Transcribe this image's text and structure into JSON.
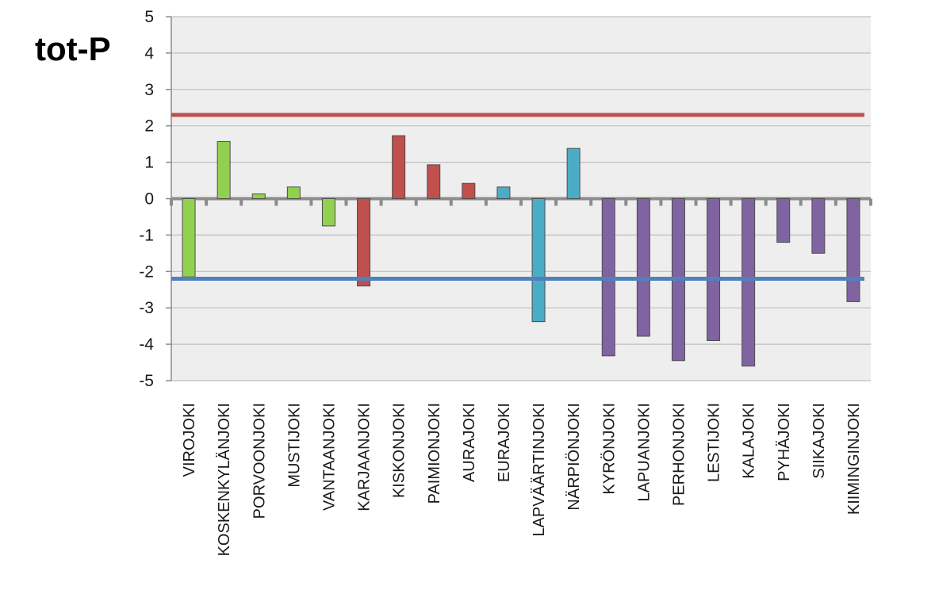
{
  "chart_data": {
    "type": "bar",
    "title": "tot-P",
    "xlabel": "",
    "ylabel": "",
    "ylim": [
      -5,
      5
    ],
    "yticks": [
      "5",
      "4",
      "3",
      "2",
      "1",
      "0",
      "-1",
      "-2",
      "-3",
      "-4",
      "-5"
    ],
    "grid": true,
    "legend": "none",
    "categories": [
      "VIROJOKI",
      "KOSKENKYLÄNJOKI",
      "PORVOONJOKI",
      "MUSTIJOKI",
      "VANTAANJOKI",
      "KARJAANJOKI",
      "KISKONJOKI",
      "PAIMIONJOKI",
      "AURAJOKI",
      "EURAJOKI",
      "LAPVÄÄRTINJOKI",
      "NÄRPIÖNJOKI",
      "KYRÖNJOKI",
      "LAPUANJOKI",
      "PERHONJOKI",
      "LESTIJOKI",
      "KALAJOKI",
      "PYHÄJOKI",
      "SIIKAJOKI",
      "KIIMINGINJOKI"
    ],
    "values": [
      -2.15,
      1.57,
      0.13,
      0.32,
      -0.75,
      -2.4,
      1.73,
      0.93,
      0.42,
      0.32,
      -3.38,
      1.38,
      -4.32,
      -3.78,
      -4.45,
      -3.9,
      -4.6,
      -1.2,
      -1.5,
      -2.83
    ],
    "bar_colors": [
      "#92d050",
      "#92d050",
      "#92d050",
      "#92d050",
      "#92d050",
      "#c0504d",
      "#c0504d",
      "#c0504d",
      "#c0504d",
      "#4bacc6",
      "#4bacc6",
      "#4bacc6",
      "#8064a2",
      "#8064a2",
      "#8064a2",
      "#8064a2",
      "#8064a2",
      "#8064a2",
      "#8064a2",
      "#8064a2"
    ],
    "reference_lines": [
      {
        "value": 2.3,
        "color": "#c0504d"
      },
      {
        "value": -2.2,
        "color": "#4f81bd"
      }
    ]
  }
}
